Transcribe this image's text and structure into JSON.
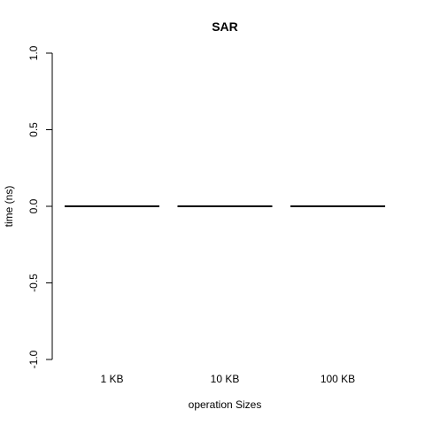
{
  "chart_data": {
    "type": "bar",
    "title": "SAR",
    "xlabel": "operation Sizes",
    "ylabel": "time (ns)",
    "categories": [
      "1 KB",
      "10 KB",
      "100 KB"
    ],
    "values": [
      0,
      0,
      0
    ],
    "ylim": [
      -1.0,
      1.0
    ],
    "yticks": [
      "-1.0",
      "-0.5",
      "0.0",
      "0.5",
      "1.0"
    ],
    "grid": false,
    "legend": "none"
  }
}
